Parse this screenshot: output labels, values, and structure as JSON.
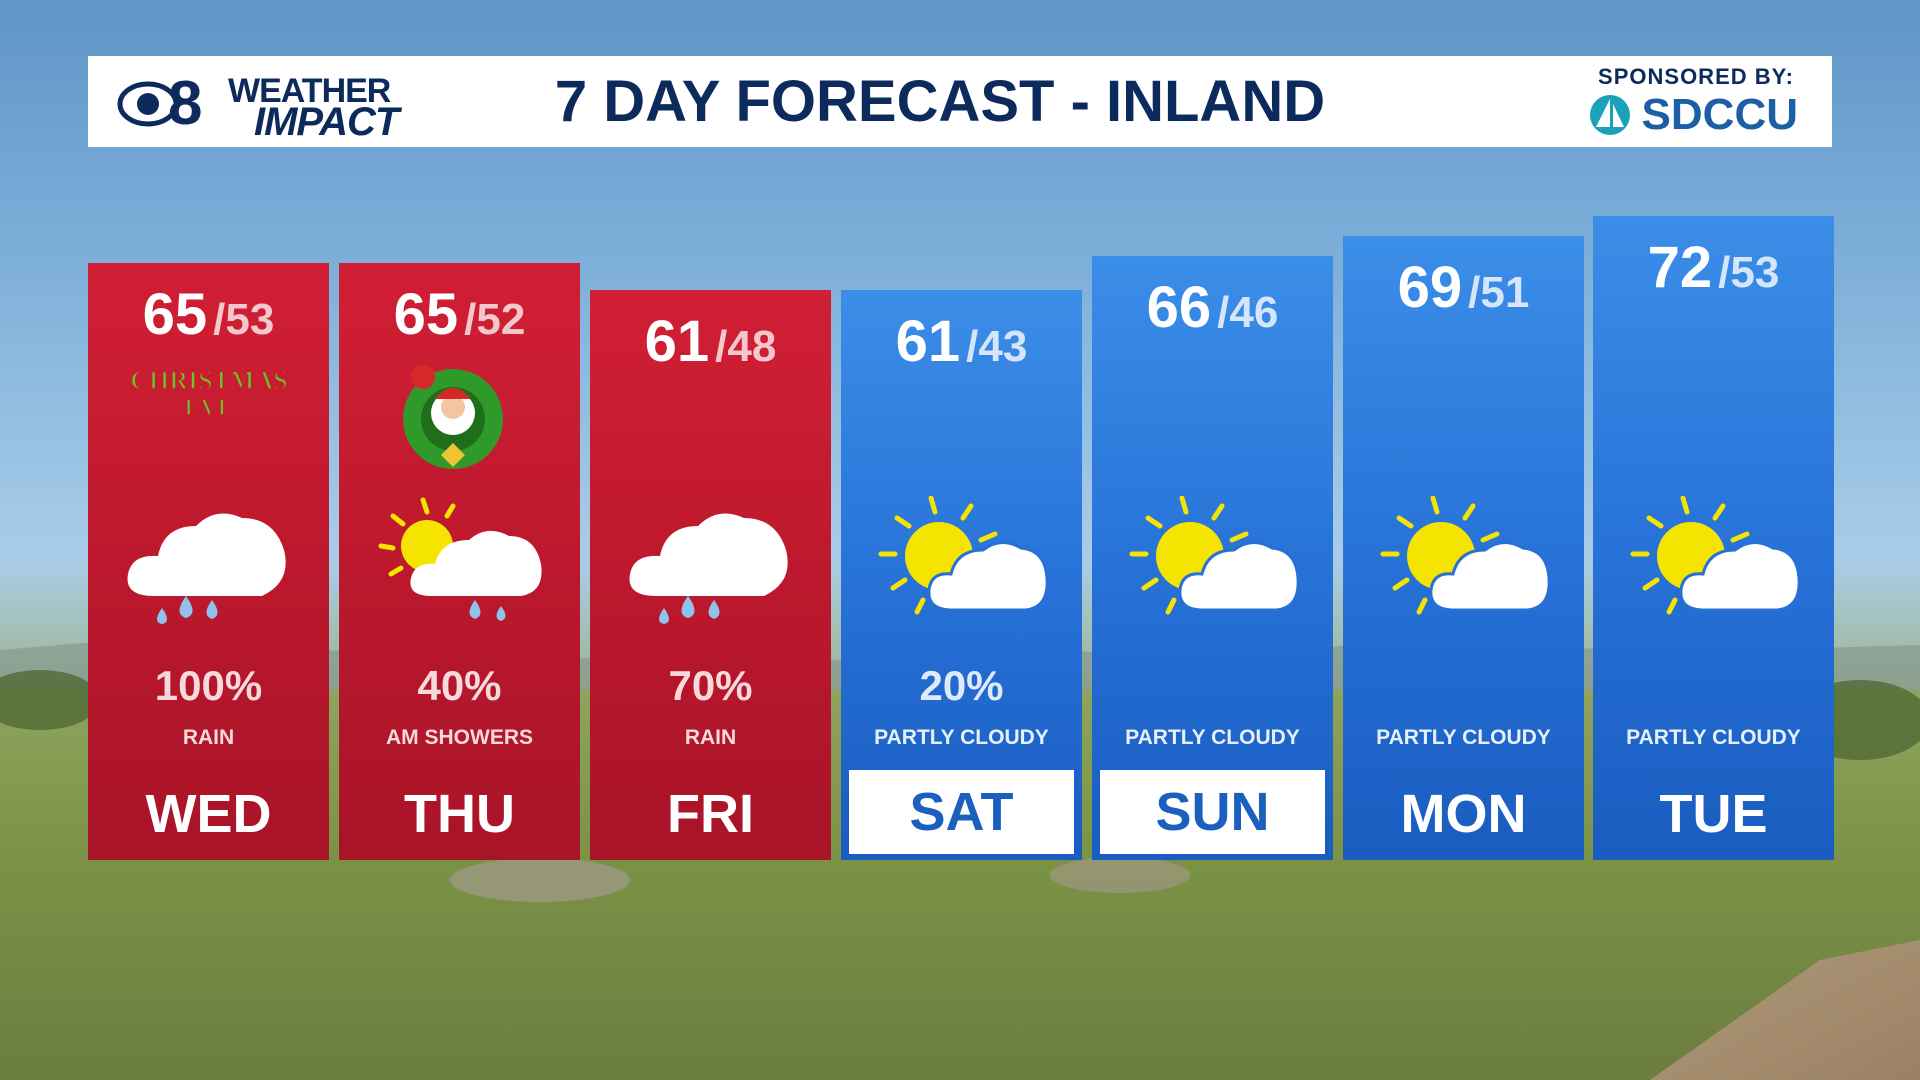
{
  "header": {
    "station_logo": {
      "channel": "8",
      "line1": "WEATHER",
      "line2": "IMPACT",
      "icon": "cbs-eye-logo"
    },
    "title": "7 DAY FORECAST - INLAND",
    "sponsor_label": "SPONSORED BY:",
    "sponsor_name": "SDCCU",
    "sponsor_icon": "sailboat-logo"
  },
  "days": [
    {
      "day": "WED",
      "high": "65",
      "low": "53",
      "precip": "100%",
      "condition": "RAIN",
      "icon": "rain-cloud-icon",
      "badge": "CHRISTMAS EVE",
      "theme": "red",
      "day_boxed": false
    },
    {
      "day": "THU",
      "high": "65",
      "low": "52",
      "precip": "40%",
      "condition": "AM SHOWERS",
      "icon": "sun-rain-cloud-icon",
      "badge": "santa-wreath",
      "theme": "red",
      "day_boxed": false
    },
    {
      "day": "FRI",
      "high": "61",
      "low": "48",
      "precip": "70%",
      "condition": "RAIN",
      "icon": "rain-cloud-icon",
      "badge": "",
      "theme": "red",
      "day_boxed": false
    },
    {
      "day": "SAT",
      "high": "61",
      "low": "43",
      "precip": "20%",
      "condition": "PARTLY CLOUDY",
      "icon": "partly-cloudy-icon",
      "badge": "",
      "theme": "blue",
      "day_boxed": true
    },
    {
      "day": "SUN",
      "high": "66",
      "low": "46",
      "precip": "",
      "condition": "PARTLY CLOUDY",
      "icon": "partly-cloudy-icon",
      "badge": "",
      "theme": "blue",
      "day_boxed": true
    },
    {
      "day": "MON",
      "high": "69",
      "low": "51",
      "precip": "",
      "condition": "PARTLY CLOUDY",
      "icon": "partly-cloudy-icon",
      "badge": "",
      "theme": "blue",
      "day_boxed": false
    },
    {
      "day": "TUE",
      "high": "72",
      "low": "53",
      "precip": "",
      "condition": "PARTLY CLOUDY",
      "icon": "partly-cloudy-icon",
      "badge": "",
      "theme": "blue",
      "day_boxed": false
    }
  ],
  "colors": {
    "header_text": "#0c2a5c",
    "rain_column": "#c41a30",
    "dry_column": "#2670d6",
    "boxed_day_text": "#1b5fbf",
    "sun": "#f4e400",
    "rain_drop": "#8fc3ec"
  }
}
